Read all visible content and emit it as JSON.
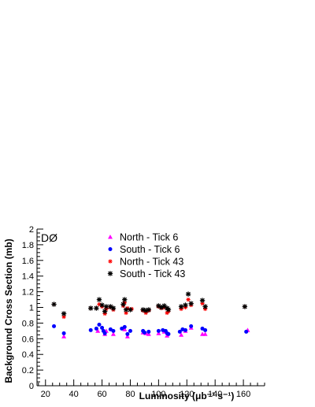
{
  "chart_data": {
    "type": "scatter",
    "experiment_label": "DØ",
    "xlabel": "Luminosity (μb⁻¹ s⁻¹)",
    "ylabel": "Background Cross Section (mb)",
    "xlim": [
      14,
      175
    ],
    "ylim": [
      0,
      2
    ],
    "x_ticks": [
      "20",
      "40",
      "60",
      "80",
      "100",
      "120",
      "140",
      "160"
    ],
    "y_ticks": [
      "0",
      "0.2",
      "0.4",
      "0.6",
      "0.8",
      "1",
      "1.2",
      "1.4",
      "1.6",
      "1.8",
      "2"
    ],
    "grid": false,
    "legend_position": "top-center",
    "series": [
      {
        "name": "North - Tick 6",
        "marker": "triangle",
        "color": "#ff00ff",
        "points": [
          [
            33,
            0.63
          ],
          [
            57,
            0.7
          ],
          [
            62,
            0.66
          ],
          [
            63,
            0.7
          ],
          [
            68,
            0.66
          ],
          [
            76,
            0.72
          ],
          [
            78,
            0.63
          ],
          [
            89,
            0.68
          ],
          [
            91,
            0.67
          ],
          [
            93,
            0.66
          ],
          [
            100,
            0.67
          ],
          [
            104,
            0.69
          ],
          [
            106,
            0.64
          ],
          [
            116,
            0.65
          ],
          [
            119,
            0.7
          ],
          [
            123,
            0.74
          ],
          [
            131,
            0.66
          ],
          [
            133,
            0.66
          ],
          [
            163,
            0.71
          ]
        ]
      },
      {
        "name": "South - Tick 6",
        "marker": "circle",
        "color": "#0000ff",
        "points": [
          [
            26,
            0.76
          ],
          [
            33,
            0.67
          ],
          [
            52,
            0.71
          ],
          [
            56,
            0.73
          ],
          [
            58,
            0.78
          ],
          [
            60,
            0.74
          ],
          [
            61,
            0.7
          ],
          [
            62,
            0.67
          ],
          [
            66,
            0.72
          ],
          [
            68,
            0.7
          ],
          [
            74,
            0.73
          ],
          [
            76,
            0.75
          ],
          [
            78,
            0.66
          ],
          [
            80,
            0.7
          ],
          [
            89,
            0.7
          ],
          [
            90,
            0.68
          ],
          [
            93,
            0.69
          ],
          [
            100,
            0.7
          ],
          [
            103,
            0.71
          ],
          [
            105,
            0.7
          ],
          [
            106,
            0.67
          ],
          [
            107,
            0.66
          ],
          [
            115,
            0.69
          ],
          [
            117,
            0.72
          ],
          [
            119,
            0.71
          ],
          [
            123,
            0.76
          ],
          [
            131,
            0.73
          ],
          [
            133,
            0.71
          ],
          [
            162,
            0.69
          ]
        ]
      },
      {
        "name": "North - Tick 43",
        "marker": "star",
        "color": "#ff0000",
        "points": [
          [
            26,
            1.04
          ],
          [
            33,
            0.88
          ],
          [
            52,
            0.99
          ],
          [
            56,
            0.99
          ],
          [
            58,
            1.04
          ],
          [
            60,
            1.01
          ],
          [
            62,
            0.92
          ],
          [
            63,
            0.98
          ],
          [
            66,
            1.0
          ],
          [
            68,
            0.97
          ],
          [
            75,
            1.02
          ],
          [
            76,
            1.06
          ],
          [
            77,
            0.93
          ],
          [
            78,
            0.99
          ],
          [
            81,
            0.98
          ],
          [
            89,
            0.96
          ],
          [
            91,
            0.93
          ],
          [
            93,
            0.96
          ],
          [
            100,
            1.01
          ],
          [
            102,
            0.99
          ],
          [
            104,
            1.0
          ],
          [
            106,
            0.93
          ],
          [
            107,
            0.95
          ],
          [
            116,
            0.98
          ],
          [
            119,
            1.0
          ],
          [
            121,
            1.1
          ],
          [
            123,
            1.03
          ],
          [
            131,
            1.05
          ],
          [
            133,
            0.98
          ],
          [
            161,
            1.01
          ]
        ]
      },
      {
        "name": "South - Tick 43",
        "marker": "asterisk",
        "color": "#000000",
        "points": [
          [
            26,
            1.04
          ],
          [
            33,
            0.92
          ],
          [
            52,
            0.99
          ],
          [
            56,
            0.99
          ],
          [
            58,
            1.1
          ],
          [
            60,
            1.03
          ],
          [
            62,
            0.95
          ],
          [
            63,
            1.01
          ],
          [
            66,
            1.01
          ],
          [
            68,
            0.99
          ],
          [
            75,
            1.04
          ],
          [
            76,
            1.1
          ],
          [
            77,
            0.97
          ],
          [
            80,
            0.97
          ],
          [
            89,
            0.97
          ],
          [
            91,
            0.96
          ],
          [
            93,
            0.97
          ],
          [
            100,
            1.02
          ],
          [
            102,
            1.0
          ],
          [
            104,
            1.02
          ],
          [
            106,
            0.99
          ],
          [
            107,
            0.97
          ],
          [
            116,
            1.01
          ],
          [
            119,
            1.03
          ],
          [
            121,
            1.17
          ],
          [
            123,
            1.05
          ],
          [
            131,
            1.09
          ],
          [
            133,
            1.01
          ],
          [
            161,
            1.01
          ]
        ]
      }
    ]
  }
}
